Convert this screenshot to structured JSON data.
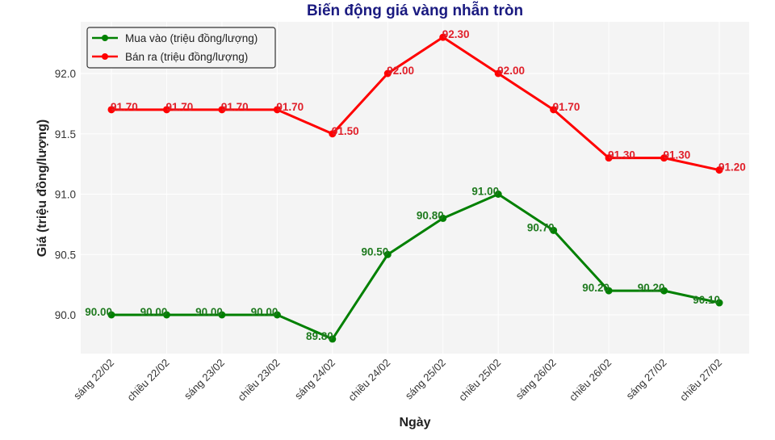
{
  "chart_data": {
    "type": "line",
    "title": "Biến động giá vàng nhẫn tròn",
    "xlabel": "Ngày",
    "ylabel": "Giá (triệu đồng/lượng)",
    "categories": [
      "sáng 22/02",
      "chiều 22/02",
      "sáng 23/02",
      "chiều 23/02",
      "sáng 24/02",
      "chiều 24/02",
      "sáng 25/02",
      "chiều 25/02",
      "sáng 26/02",
      "chiều 26/02",
      "sáng 27/02",
      "chiều 27/02"
    ],
    "series": [
      {
        "name": "Mua vào (triệu đồng/lượng)",
        "color": "#008000",
        "values": [
          90.0,
          90.0,
          90.0,
          90.0,
          89.8,
          90.5,
          90.8,
          91.0,
          90.7,
          90.2,
          90.2,
          90.1
        ]
      },
      {
        "name": "Bán ra (triệu đồng/lượng)",
        "color": "#ff0000",
        "values": [
          91.7,
          91.7,
          91.7,
          91.7,
          91.5,
          92.0,
          92.3,
          92.0,
          91.7,
          91.3,
          91.3,
          91.2
        ]
      }
    ],
    "yticks": [
      90.0,
      90.5,
      91.0,
      91.5,
      92.0
    ],
    "ylim": [
      89.68,
      92.42
    ],
    "grid": true,
    "legend_position": "upper left",
    "data_labels": true
  },
  "colors": {
    "title": "#1a1a80",
    "plot_bg": "#f4f4f4",
    "grid": "#ffffff",
    "axis_text": "#333333"
  }
}
